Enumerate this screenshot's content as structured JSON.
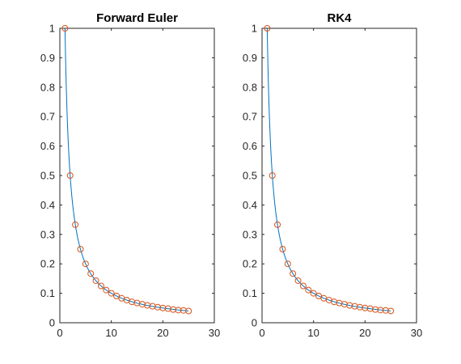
{
  "chart_data": [
    {
      "type": "line",
      "title": "Forward Euler",
      "xlabel": "",
      "ylabel": "",
      "xlim": [
        0,
        30
      ],
      "ylim": [
        0,
        1
      ],
      "xticks": [
        0,
        10,
        20,
        30
      ],
      "yticks": [
        0,
        0.1,
        0.2,
        0.3,
        0.4,
        0.5,
        0.6,
        0.7,
        0.8,
        0.9,
        1
      ],
      "grid": false,
      "series": [
        {
          "style": "line",
          "color": "#0072BD",
          "function": "1/x",
          "x_range": [
            1,
            25
          ]
        },
        {
          "style": "markers",
          "marker": "circle",
          "color": "#D95319",
          "x": [
            1,
            2,
            3,
            4,
            5,
            6,
            7,
            8,
            9,
            10,
            11,
            12,
            13,
            14,
            15,
            16,
            17,
            18,
            19,
            20,
            21,
            22,
            23,
            24,
            25
          ],
          "y": [
            1,
            0.5,
            0.333,
            0.25,
            0.2,
            0.167,
            0.143,
            0.125,
            0.111,
            0.1,
            0.091,
            0.083,
            0.077,
            0.071,
            0.067,
            0.063,
            0.059,
            0.056,
            0.053,
            0.05,
            0.048,
            0.045,
            0.043,
            0.042,
            0.04
          ]
        }
      ]
    },
    {
      "type": "line",
      "title": "RK4",
      "xlabel": "",
      "ylabel": "",
      "xlim": [
        0,
        30
      ],
      "ylim": [
        0,
        1
      ],
      "xticks": [
        0,
        10,
        20,
        30
      ],
      "yticks": [
        0,
        0.1,
        0.2,
        0.3,
        0.4,
        0.5,
        0.6,
        0.7,
        0.8,
        0.9,
        1
      ],
      "grid": false,
      "series": [
        {
          "style": "line",
          "color": "#0072BD",
          "function": "1/x",
          "x_range": [
            1,
            25
          ]
        },
        {
          "style": "markers",
          "marker": "circle",
          "color": "#D95319",
          "x": [
            1,
            2,
            3,
            4,
            5,
            6,
            7,
            8,
            9,
            10,
            11,
            12,
            13,
            14,
            15,
            16,
            17,
            18,
            19,
            20,
            21,
            22,
            23,
            24,
            25
          ],
          "y": [
            1,
            0.5,
            0.333,
            0.25,
            0.2,
            0.167,
            0.143,
            0.125,
            0.111,
            0.1,
            0.091,
            0.083,
            0.077,
            0.071,
            0.067,
            0.063,
            0.059,
            0.056,
            0.053,
            0.05,
            0.048,
            0.045,
            0.043,
            0.042,
            0.04
          ]
        }
      ]
    }
  ]
}
